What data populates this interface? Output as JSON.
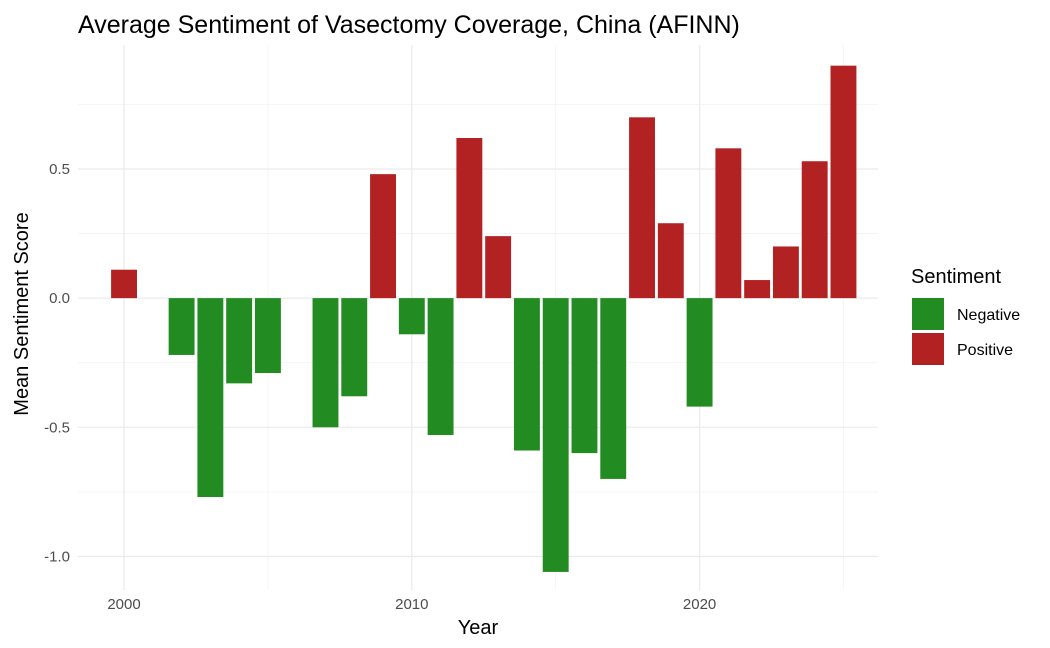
{
  "chart_data": {
    "type": "bar",
    "title": "Average Sentiment of Vasectomy Coverage, China (AFINN)",
    "xlabel": "Year",
    "ylabel": "Mean Sentiment Score",
    "xlim": [
      1998.4,
      2026.2
    ],
    "ylim": [
      -1.13,
      0.98
    ],
    "x_ticks": [
      2000,
      2010,
      2020
    ],
    "x_tick_labels": [
      "2000",
      "2010",
      "2020"
    ],
    "y_ticks": [
      -1.0,
      -0.5,
      0.0,
      0.5
    ],
    "y_tick_labels": [
      "-1.0",
      "-0.5",
      "0.0",
      "0.5"
    ],
    "grid": true,
    "legend": {
      "title": "Sentiment",
      "placement": "right",
      "entries": [
        {
          "label": "Negative",
          "color": "#228b22"
        },
        {
          "label": "Positive",
          "color": "#b22222"
        }
      ]
    },
    "colors": {
      "Negative": "#228b22",
      "Positive": "#b22222"
    },
    "x": [
      2000,
      2002,
      2003,
      2004,
      2005,
      2007,
      2008,
      2009,
      2010,
      2011,
      2012,
      2013,
      2014,
      2015,
      2016,
      2017,
      2018,
      2019,
      2020,
      2021,
      2022,
      2023,
      2024,
      2025
    ],
    "values": [
      0.11,
      -0.22,
      -0.77,
      -0.33,
      -0.29,
      -0.5,
      -0.38,
      0.48,
      -0.14,
      -0.53,
      0.62,
      0.24,
      -0.59,
      -1.06,
      -0.6,
      -0.7,
      0.7,
      0.29,
      -0.42,
      0.58,
      0.07,
      0.2,
      0.53,
      0.9
    ],
    "sentiment": [
      "Positive",
      "Negative",
      "Negative",
      "Negative",
      "Negative",
      "Negative",
      "Negative",
      "Positive",
      "Negative",
      "Negative",
      "Positive",
      "Positive",
      "Negative",
      "Negative",
      "Negative",
      "Negative",
      "Positive",
      "Positive",
      "Negative",
      "Positive",
      "Positive",
      "Positive",
      "Positive",
      "Positive"
    ]
  }
}
